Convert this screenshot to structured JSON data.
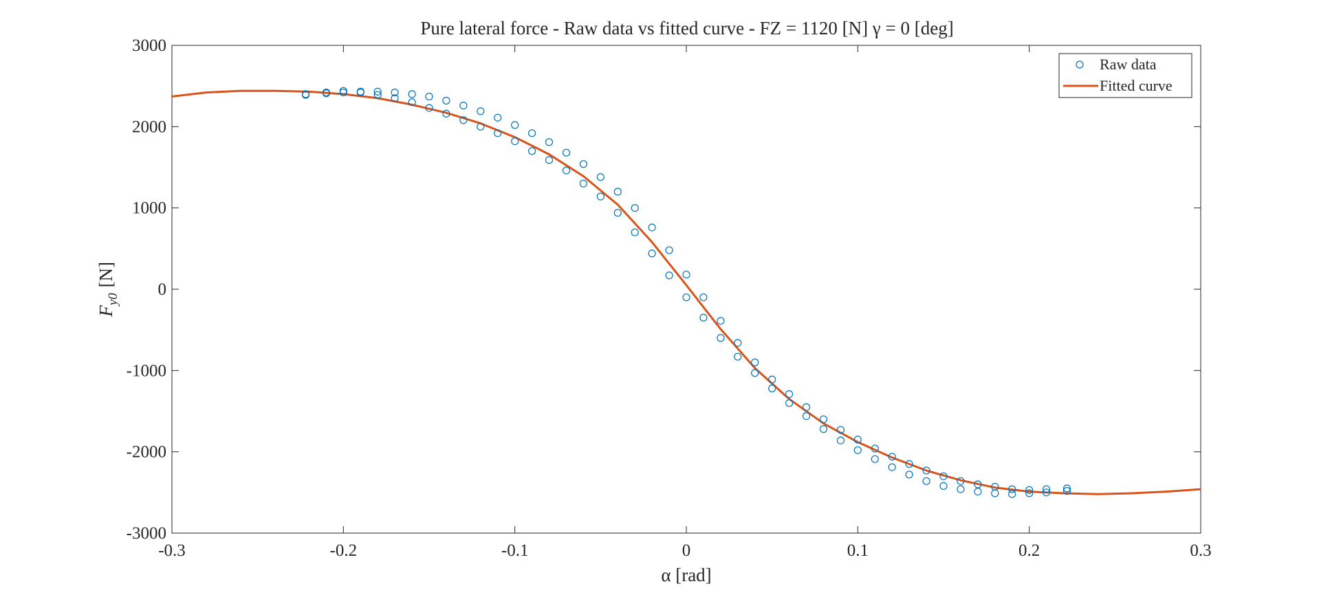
{
  "chart_data": {
    "type": "scatter",
    "title": "Pure lateral force - Raw data vs fitted curve - FZ = 1120 [N] γ = 0 [deg]",
    "xlabel": "α [rad]",
    "ylabel": "F_y0 [N]",
    "ylabel_parts": {
      "main": "F",
      "sub": "y0",
      "unit": "[N]"
    },
    "xlim": [
      -0.3,
      0.3
    ],
    "ylim": [
      -3000,
      3000
    ],
    "xticks": [
      -0.3,
      -0.2,
      -0.1,
      0,
      0.1,
      0.2,
      0.3
    ],
    "xtick_labels": [
      "-0.3",
      "-0.2",
      "-0.1",
      "0",
      "0.1",
      "0.2",
      "0.3"
    ],
    "yticks": [
      3000,
      2000,
      1000,
      0,
      -1000,
      -2000,
      -3000
    ],
    "ytick_labels": [
      "3000",
      "2000",
      "1000",
      "0",
      "-1000",
      "-2000",
      "-3000"
    ],
    "grid": false,
    "legend_position": "top-right",
    "legend": [
      "Raw data",
      "Fitted curve"
    ],
    "colors": {
      "raw": "#0072BD",
      "fit": "#D95319",
      "axis": "#262626"
    },
    "series": [
      {
        "name": "Raw data",
        "kind": "markers",
        "marker": "circle",
        "branches": [
          {
            "x": [
              -0.222,
              -0.21,
              -0.2,
              -0.19,
              -0.18,
              -0.17,
              -0.16,
              -0.15,
              -0.14,
              -0.13,
              -0.12,
              -0.11,
              -0.1,
              -0.09,
              -0.08,
              -0.07,
              -0.06,
              -0.05,
              -0.04,
              -0.03,
              -0.02,
              -0.01,
              0.0,
              0.01,
              0.02,
              0.03,
              0.04,
              0.05,
              0.06,
              0.07,
              0.08,
              0.09,
              0.1,
              0.11,
              0.12,
              0.13,
              0.14,
              0.15,
              0.16,
              0.17,
              0.18,
              0.19,
              0.2,
              0.21,
              0.222
            ],
            "y": [
              2390,
              2420,
              2440,
              2420,
              2390,
              2350,
              2300,
              2230,
              2160,
              2080,
              2000,
              1920,
              1820,
              1700,
              1590,
              1460,
              1300,
              1140,
              940,
              700,
              440,
              170,
              -100,
              -350,
              -600,
              -830,
              -1030,
              -1220,
              -1400,
              -1560,
              -1720,
              -1860,
              -1980,
              -2090,
              -2190,
              -2280,
              -2360,
              -2420,
              -2460,
              -2490,
              -2510,
              -2520,
              -2510,
              -2500,
              -2480
            ]
          },
          {
            "x": [
              0.222,
              0.21,
              0.2,
              0.19,
              0.18,
              0.17,
              0.16,
              0.15,
              0.14,
              0.13,
              0.12,
              0.11,
              0.1,
              0.09,
              0.08,
              0.07,
              0.06,
              0.05,
              0.04,
              0.03,
              0.02,
              0.01,
              0.0,
              -0.01,
              -0.02,
              -0.03,
              -0.04,
              -0.05,
              -0.06,
              -0.07,
              -0.08,
              -0.09,
              -0.1,
              -0.11,
              -0.12,
              -0.13,
              -0.14,
              -0.15,
              -0.16,
              -0.17,
              -0.18,
              -0.19,
              -0.2,
              -0.21,
              -0.222
            ],
            "y": [
              -2450,
              -2460,
              -2470,
              -2460,
              -2430,
              -2400,
              -2360,
              -2300,
              -2230,
              -2150,
              -2060,
              -1960,
              -1850,
              -1730,
              -1600,
              -1450,
              -1290,
              -1110,
              -900,
              -660,
              -390,
              -100,
              180,
              480,
              760,
              1000,
              1200,
              1380,
              1540,
              1680,
              1810,
              1920,
              2020,
              2110,
              2190,
              2260,
              2320,
              2370,
              2400,
              2420,
              2430,
              2430,
              2420,
              2410,
              2400
            ]
          }
        ]
      },
      {
        "name": "Fitted curve",
        "kind": "line",
        "x": [
          -0.3,
          -0.28,
          -0.26,
          -0.24,
          -0.22,
          -0.2,
          -0.18,
          -0.16,
          -0.14,
          -0.12,
          -0.1,
          -0.08,
          -0.06,
          -0.04,
          -0.02,
          0.0,
          0.02,
          0.04,
          0.06,
          0.08,
          0.1,
          0.12,
          0.14,
          0.16,
          0.18,
          0.2,
          0.22,
          0.24,
          0.26,
          0.28,
          0.3
        ],
        "y": [
          2370,
          2420,
          2440,
          2440,
          2430,
          2400,
          2350,
          2270,
          2170,
          2040,
          1870,
          1660,
          1390,
          1040,
          580,
          50,
          -490,
          -970,
          -1350,
          -1650,
          -1880,
          -2070,
          -2230,
          -2350,
          -2440,
          -2490,
          -2510,
          -2520,
          -2510,
          -2490,
          -2460
        ]
      }
    ]
  }
}
